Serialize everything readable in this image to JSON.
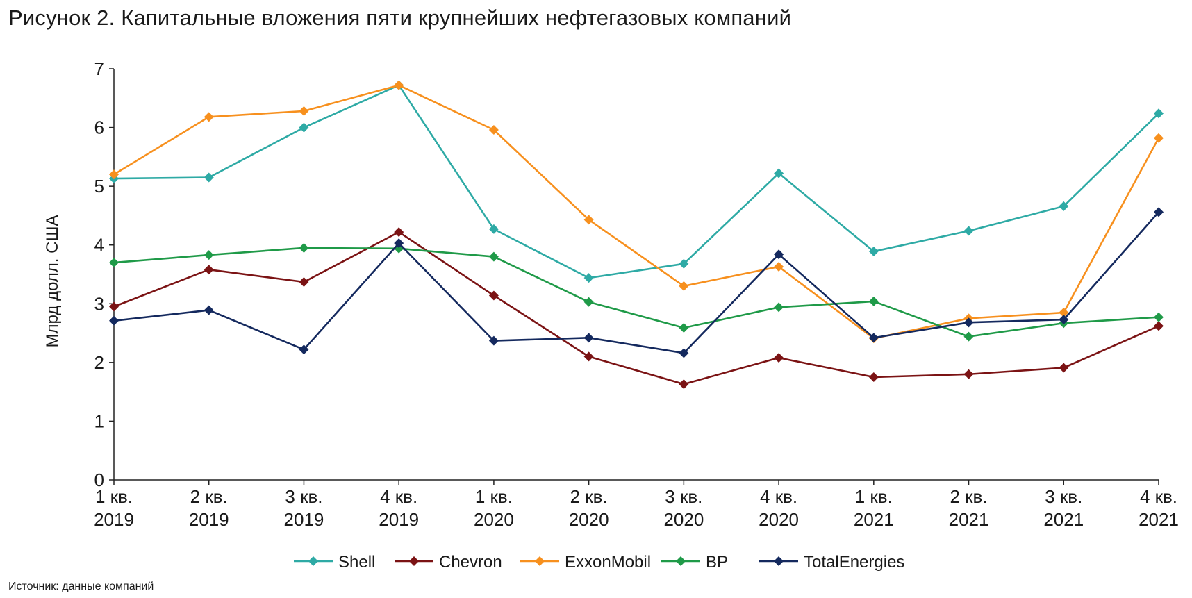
{
  "title": "Рисунок 2. Капитальные вложения пяти крупнейших нефтегазовых компаний",
  "source": "Источник: данные компаний",
  "chart_data": {
    "type": "line",
    "ylabel": "Млрд долл. США",
    "ylim": [
      0,
      7
    ],
    "yticks": [
      0,
      1,
      2,
      3,
      4,
      5,
      6,
      7
    ],
    "grid": false,
    "legend_position": "bottom",
    "categories": [
      [
        "1 кв.",
        "2019"
      ],
      [
        "2 кв.",
        "2019"
      ],
      [
        "3 кв.",
        "2019"
      ],
      [
        "4 кв.",
        "2019"
      ],
      [
        "1 кв.",
        "2020"
      ],
      [
        "2 кв.",
        "2020"
      ],
      [
        "3 кв.",
        "2020"
      ],
      [
        "4 кв.",
        "2020"
      ],
      [
        "1 кв.",
        "2021"
      ],
      [
        "2 кв.",
        "2021"
      ],
      [
        "3 кв.",
        "2021"
      ],
      [
        "4 кв.",
        "2021"
      ]
    ],
    "series": [
      {
        "name": "Shell",
        "color": "#2eaaa5",
        "values": [
          5.13,
          5.15,
          6.0,
          6.72,
          4.27,
          3.44,
          3.68,
          5.22,
          3.89,
          4.24,
          4.66,
          6.24
        ]
      },
      {
        "name": "Chevron",
        "color": "#7b1314",
        "values": [
          2.95,
          3.58,
          3.37,
          4.22,
          3.14,
          2.1,
          1.63,
          2.08,
          1.75,
          1.8,
          1.91,
          2.62
        ]
      },
      {
        "name": "ExxonMobil",
        "color": "#f7901e",
        "values": [
          5.2,
          6.18,
          6.28,
          6.72,
          5.96,
          4.43,
          3.3,
          3.63,
          2.41,
          2.75,
          2.85,
          5.82
        ]
      },
      {
        "name": "BP",
        "color": "#1f9a48",
        "values": [
          3.7,
          3.83,
          3.95,
          3.94,
          3.8,
          3.03,
          2.59,
          2.94,
          3.04,
          2.44,
          2.67,
          2.77
        ]
      },
      {
        "name": "TotalEnergies",
        "color": "#14295e",
        "values": [
          2.71,
          2.89,
          2.22,
          4.03,
          2.37,
          2.42,
          2.16,
          3.84,
          2.42,
          2.68,
          2.73,
          4.56
        ]
      }
    ]
  }
}
